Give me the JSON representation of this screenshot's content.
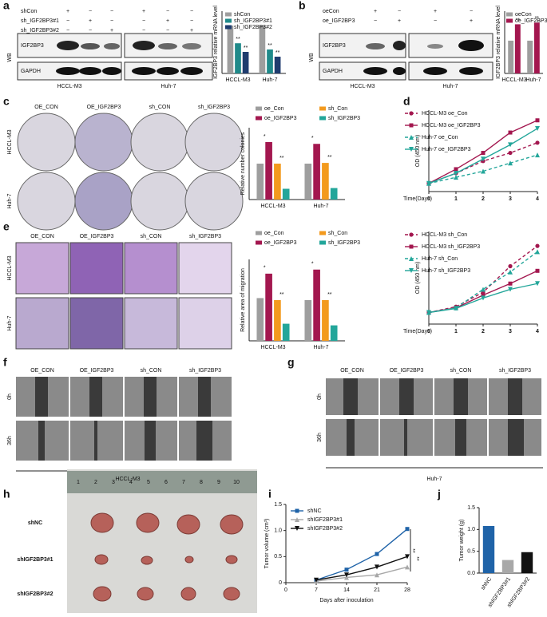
{
  "panels": {
    "letters": [
      "a",
      "b",
      "c",
      "d",
      "e",
      "f",
      "g",
      "h",
      "i",
      "j"
    ],
    "a": {
      "wb": "WB",
      "blots": [
        "IGF2BP3",
        "GAPDH"
      ],
      "cell_lines": [
        "HCCL-M3",
        "Huh-7"
      ],
      "rows": [
        {
          "label": "shCon",
          "signs": [
            "+",
            "−",
            "−",
            "+",
            "−",
            "−"
          ]
        },
        {
          "label": "sh_IGF2BP3#1",
          "signs": [
            "−",
            "+",
            "−",
            "−",
            "+",
            "−"
          ]
        },
        {
          "label": "sh_IGF2BP3#2",
          "signs": [
            "−",
            "−",
            "+",
            "−",
            "−",
            "+"
          ]
        }
      ]
    },
    "b": {
      "wb": "WB",
      "blots": [
        "IGF2BP3",
        "GAPDH"
      ],
      "cell_lines": [
        "HCCL-M3",
        "Huh-7"
      ],
      "rows": [
        {
          "label": "oeCon",
          "signs": [
            "+",
            "−",
            "+",
            "−"
          ]
        },
        {
          "label": "oe_IGF2BP3",
          "signs": [
            "−",
            "+",
            "−",
            "+"
          ]
        }
      ]
    },
    "c": {
      "columns": [
        "OE_CON",
        "OE_IGF2BP3",
        "sh_CON",
        "sh_IGF2BP3"
      ],
      "rows": [
        "HCCL-M3",
        "Huh-7"
      ]
    },
    "e": {
      "columns": [
        "OE_CON",
        "OE_IGF2BP3",
        "sh_CON",
        "sh_IGF2BP3"
      ],
      "rows": [
        "HCCL-M3",
        "Huh-7"
      ]
    },
    "f": {
      "columns": [
        "OE_CON",
        "OE_IGF2BP3",
        "sh_CON",
        "sh_IGF2BP3"
      ],
      "rows": [
        "0h",
        "36h"
      ],
      "caption": "HCCL-M3"
    },
    "g": {
      "columns": [
        "OE_CON",
        "OE_IGF2BP3",
        "sh_CON",
        "sh_IGF2BP3"
      ],
      "rows": [
        "0h",
        "36h"
      ],
      "caption": "Huh-7"
    },
    "h": {
      "rows": [
        "shNC",
        "shIGF2BP3#1",
        "shIGF2BP3#2"
      ],
      "ruler": [
        "1",
        "2",
        "3",
        "4",
        "5",
        "6",
        "7",
        "8",
        "9",
        "10"
      ]
    }
  },
  "chart_data": [
    {
      "type": "bar",
      "ylabel": "IGF2BP3 relative mRNA level",
      "categories": [
        "HCCL-M3",
        "Huh-7"
      ],
      "ylim": [
        0,
        1.3
      ],
      "series": [
        {
          "name": "shCon",
          "color": "#9e9e9e",
          "values": [
            1.0,
            1.0
          ]
        },
        {
          "name": "sh_IGF2BP3#1",
          "color": "#1f8a8a",
          "values": [
            0.63,
            0.5
          ]
        },
        {
          "name": "sh_IGF2BP3#2",
          "color": "#1f3c6e",
          "values": [
            0.45,
            0.35
          ]
        }
      ],
      "annotations": [
        "**",
        "**",
        "**",
        "**"
      ]
    },
    {
      "type": "bar",
      "ylabel": "IGF2BP3 relative mRNA level",
      "categories": [
        "HCCL-M3",
        "Huh-7"
      ],
      "ylim": [
        0,
        1.9
      ],
      "series": [
        {
          "name": "oeCon",
          "color": "#9e9e9e",
          "values": [
            1.0,
            1.0
          ]
        },
        {
          "name": "oe_IGF2BP3",
          "color": "#a3174f",
          "values": [
            1.5,
            1.55
          ]
        }
      ],
      "annotations": [
        "**",
        "**"
      ]
    },
    {
      "type": "bar",
      "ylabel": "Relative number colonies",
      "categories": [
        "HCCL-M3",
        "Huh-7"
      ],
      "ylim": [
        0,
        2.0
      ],
      "series": [
        {
          "name": "oe_Con",
          "color": "#9e9e9e",
          "values": [
            1.0,
            1.0
          ]
        },
        {
          "name": "oe_IGF2BP3",
          "color": "#a3174f",
          "values": [
            1.6,
            1.55
          ]
        },
        {
          "name": "sh_Con",
          "color": "#f39a1e",
          "values": [
            1.0,
            1.02
          ]
        },
        {
          "name": "sh_IGF2BP3",
          "color": "#23a69a",
          "values": [
            0.3,
            0.32
          ]
        }
      ],
      "annotations": [
        "*",
        "**",
        "*",
        "**"
      ]
    },
    {
      "type": "bar",
      "ylabel": "Relative area of migration",
      "categories": [
        "HCCL-M3",
        "Huh-7"
      ],
      "ylim": [
        0,
        2.0
      ],
      "series": [
        {
          "name": "oe_Con",
          "color": "#9e9e9e",
          "values": [
            1.05,
            1.0
          ]
        },
        {
          "name": "oe_IGF2BP3",
          "color": "#a3174f",
          "values": [
            1.65,
            1.75
          ]
        },
        {
          "name": "sh_Con",
          "color": "#f39a1e",
          "values": [
            1.0,
            1.0
          ]
        },
        {
          "name": "sh_IGF2BP3",
          "color": "#23a69a",
          "values": [
            0.42,
            0.38
          ]
        }
      ],
      "annotations": [
        "*",
        "**",
        "*",
        "**"
      ]
    },
    {
      "type": "line",
      "xlabel": "Time(Days)",
      "ylabel": "OD (450 nm)",
      "x": [
        0,
        1,
        2,
        3,
        4
      ],
      "xlim": [
        0,
        4
      ],
      "xticks": [
        0,
        1,
        2,
        3,
        4
      ],
      "ylim": [
        0,
        2.0
      ],
      "series": [
        {
          "name": "HCCL-M3 oe_Con",
          "color": "#a3174f",
          "dashed": true,
          "marker": "circle",
          "values": [
            0.2,
            0.45,
            0.75,
            0.95,
            1.2
          ]
        },
        {
          "name": "HCCL-M3 oe_IGF2BP3",
          "color": "#a3174f",
          "dashed": false,
          "marker": "square",
          "values": [
            0.2,
            0.55,
            0.95,
            1.45,
            1.75
          ]
        },
        {
          "name": "Huh-7 oe_Con",
          "color": "#23a69a",
          "dashed": true,
          "marker": "triangle",
          "values": [
            0.2,
            0.35,
            0.5,
            0.7,
            0.9
          ]
        },
        {
          "name": "Huh-7 oe_IGF2BP3",
          "color": "#23a69a",
          "dashed": false,
          "marker": "triangle-down",
          "values": [
            0.2,
            0.45,
            0.8,
            1.15,
            1.55
          ]
        }
      ]
    },
    {
      "type": "line",
      "xlabel": "Time(Days)",
      "ylabel": "OD (450 nm)",
      "x": [
        0,
        1,
        2,
        3,
        4
      ],
      "xlim": [
        0,
        4
      ],
      "xticks": [
        0,
        1,
        2,
        3,
        4
      ],
      "ylim": [
        0,
        1.6
      ],
      "series": [
        {
          "name": "HCCL-M3 sh_Con",
          "color": "#a3174f",
          "dashed": true,
          "marker": "circle",
          "values": [
            0.2,
            0.3,
            0.55,
            1.0,
            1.35
          ]
        },
        {
          "name": "HCCL-M3 sh_IGF2BP3",
          "color": "#a3174f",
          "dashed": false,
          "marker": "square",
          "values": [
            0.2,
            0.28,
            0.5,
            0.7,
            0.92
          ]
        },
        {
          "name": "Huh-7 sh_Con",
          "color": "#23a69a",
          "dashed": true,
          "marker": "triangle",
          "values": [
            0.2,
            0.28,
            0.6,
            0.9,
            1.25
          ]
        },
        {
          "name": "Huh-7 sh_IGF2BP3",
          "color": "#23a69a",
          "dashed": false,
          "marker": "triangle-down",
          "values": [
            0.2,
            0.27,
            0.45,
            0.6,
            0.7
          ]
        }
      ]
    },
    {
      "type": "line",
      "xlabel": "Days after inoculation",
      "ylabel": "Tumor volume (cm³)",
      "x": [
        7,
        14,
        21,
        28
      ],
      "xlim": [
        0,
        28
      ],
      "xticks": [
        0,
        7,
        14,
        21,
        28
      ],
      "ylim": [
        0,
        1.5
      ],
      "yticks": [
        0,
        {
          "value": 0.5,
          "label": "0.5"
        },
        {
          "value": 1,
          "label": "1.0"
        },
        {
          "value": 1.5,
          "label": "1.5"
        }
      ],
      "series": [
        {
          "name": "shNC",
          "color": "#1f63a8",
          "dashed": false,
          "marker": "square",
          "values": [
            0.05,
            0.25,
            0.55,
            1.03
          ]
        },
        {
          "name": "shIGF2BP3#1",
          "color": "#a8a8a8",
          "dashed": false,
          "marker": "triangle",
          "values": [
            0.03,
            0.1,
            0.15,
            0.3
          ]
        },
        {
          "name": "shIGF2BP3#2",
          "color": "#111111",
          "dashed": false,
          "marker": "triangle-down",
          "values": [
            0.05,
            0.15,
            0.3,
            0.5
          ]
        }
      ],
      "annotations": [
        "**",
        "**"
      ]
    },
    {
      "type": "bar",
      "ylabel": "Tumor weight (g)",
      "categories": [
        "shNC",
        "shIGF2BP3#1",
        "shIGF2BP3#2"
      ],
      "values": [
        1.08,
        0.3,
        0.48
      ],
      "colors": [
        "#1f63a8",
        "#a8a8a8",
        "#111111"
      ],
      "ylim": [
        0,
        1.5
      ],
      "yticks": [
        {
          "value": 0,
          "label": "0.0"
        },
        {
          "value": 0.5,
          "label": "0.5"
        },
        {
          "value": 1,
          "label": "1.0"
        },
        {
          "value": 1.5,
          "label": "1.5"
        }
      ]
    }
  ]
}
